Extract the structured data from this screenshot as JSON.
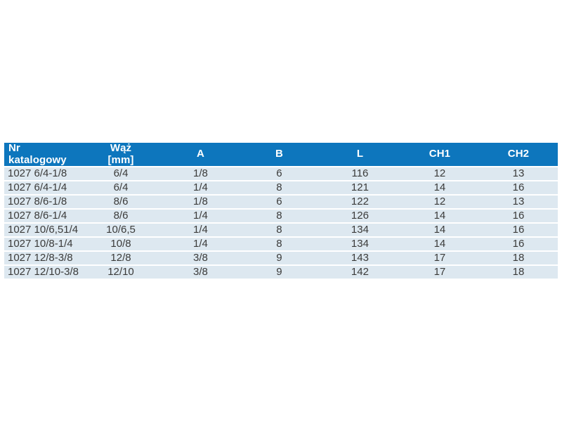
{
  "colors": {
    "header_bg": "#0d76bd",
    "header_text": "#ffffff",
    "row_bg": "#dde8f0",
    "row_text": "#3b3b3a",
    "page_bg": "#ffffff"
  },
  "table": {
    "columns": [
      {
        "label": "Nr katalogowy",
        "label2": "",
        "align": "left",
        "width": "13.58%"
      },
      {
        "label": "Wąż",
        "label2": "[mm]",
        "align": "center",
        "width": "14.97%"
      },
      {
        "label": "A",
        "label2": "",
        "align": "center",
        "width": "13.83%"
      },
      {
        "label": "B",
        "label2": "",
        "align": "center",
        "width": "14.59%"
      },
      {
        "label": "L",
        "label2": "",
        "align": "center",
        "width": "14.59%"
      },
      {
        "label": "CH1",
        "label2": "",
        "align": "center",
        "width": "14.21%"
      },
      {
        "label": "CH2",
        "label2": "",
        "align": "center",
        "width": "14.21%"
      }
    ],
    "rows": [
      [
        "1027 6/4-1/8",
        "6/4",
        "1/8",
        "6",
        "116",
        "12",
        "13"
      ],
      [
        "1027 6/4-1/4",
        "6/4",
        "1/4",
        "8",
        "121",
        "14",
        "16"
      ],
      [
        "1027 8/6-1/8",
        "8/6",
        "1/8",
        "6",
        "122",
        "12",
        "13"
      ],
      [
        "1027 8/6-1/4",
        "8/6",
        "1/4",
        "8",
        "126",
        "14",
        "16"
      ],
      [
        "1027 10/6,51/4",
        "10/6,5",
        "1/4",
        "8",
        "134",
        "14",
        "16"
      ],
      [
        "1027 10/8-1/4",
        "10/8",
        "1/4",
        "8",
        "134",
        "14",
        "16"
      ],
      [
        "1027 12/8-3/8",
        "12/8",
        "3/8",
        "9",
        "143",
        "17",
        "18"
      ],
      [
        "1027 12/10-3/8",
        "12/10",
        "3/8",
        "9",
        "142",
        "17",
        "18"
      ]
    ]
  }
}
